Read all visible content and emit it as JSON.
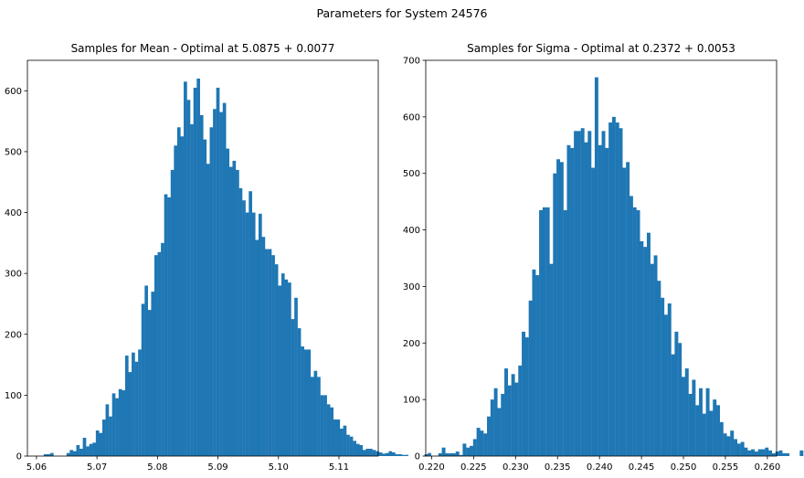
{
  "figure": {
    "suptitle": "Parameters for System 24576"
  },
  "colors": {
    "bar": "#1f77b4",
    "axis": "#000000",
    "background": "#ffffff"
  },
  "chart_data": [
    {
      "type": "bar",
      "title": "Samples for Mean - Optimal at 5.0875 + 0.0077",
      "xlabel": "",
      "ylabel": "",
      "xlim": [
        5.0585,
        5.1165
      ],
      "ylim": [
        0,
        650
      ],
      "xticks": [
        5.06,
        5.07,
        5.08,
        5.09,
        5.1,
        5.11
      ],
      "xtick_labels": [
        "5.06",
        "5.07",
        "5.08",
        "5.09",
        "5.10",
        "5.11"
      ],
      "yticks": [
        0,
        100,
        200,
        300,
        400,
        500,
        600
      ],
      "ytick_labels": [
        "0",
        "100",
        "200",
        "300",
        "400",
        "500",
        "600"
      ],
      "bin_start": 5.0612,
      "bin_width": 0.000538,
      "values": [
        3,
        3,
        5,
        0,
        0,
        0,
        0,
        5,
        10,
        8,
        18,
        12,
        30,
        16,
        20,
        22,
        42,
        38,
        60,
        85,
        65,
        103,
        95,
        110,
        108,
        165,
        138,
        170,
        155,
        175,
        250,
        280,
        240,
        270,
        330,
        335,
        350,
        430,
        425,
        470,
        510,
        540,
        525,
        615,
        585,
        545,
        605,
        620,
        560,
        520,
        480,
        540,
        570,
        605,
        565,
        580,
        505,
        475,
        485,
        470,
        440,
        420,
        400,
        435,
        400,
        355,
        398,
        360,
        340,
        340,
        330,
        315,
        280,
        300,
        290,
        285,
        225,
        260,
        210,
        180,
        175,
        175,
        130,
        140,
        130,
        100,
        100,
        85,
        80,
        60,
        60,
        45,
        50,
        35,
        32,
        25,
        20,
        18,
        10,
        12,
        12,
        10,
        8,
        6,
        4,
        5,
        8,
        6,
        3,
        3,
        2,
        2,
        0,
        0,
        0,
        0,
        0,
        3,
        5
      ],
      "grid": false,
      "legend": "none"
    },
    {
      "type": "bar",
      "title": "Samples for Sigma - Optimal at 0.2372 + 0.0053",
      "xlabel": "",
      "ylabel": "",
      "xlim": [
        0.2193,
        0.2611
      ],
      "ylim": [
        0,
        700
      ],
      "xticks": [
        0.22,
        0.225,
        0.23,
        0.235,
        0.24,
        0.245,
        0.25,
        0.255,
        0.26
      ],
      "xtick_labels": [
        "0.220",
        "0.225",
        "0.230",
        "0.235",
        "0.240",
        "0.245",
        "0.250",
        "0.255",
        "0.260"
      ],
      "yticks": [
        0,
        100,
        200,
        300,
        400,
        500,
        600,
        700
      ],
      "ytick_labels": [
        "0",
        "100",
        "200",
        "300",
        "400",
        "500",
        "600",
        "700"
      ],
      "bin_start": 0.2208,
      "bin_width": 0.000414,
      "values": [
        5,
        15,
        5,
        5,
        5,
        8,
        2,
        22,
        15,
        18,
        30,
        50,
        45,
        40,
        70,
        100,
        120,
        85,
        110,
        155,
        125,
        145,
        130,
        160,
        220,
        210,
        275,
        330,
        320,
        435,
        440,
        440,
        340,
        500,
        525,
        520,
        435,
        550,
        545,
        575,
        575,
        580,
        555,
        575,
        510,
        670,
        550,
        575,
        545,
        590,
        600,
        590,
        580,
        510,
        520,
        460,
        440,
        435,
        380,
        370,
        395,
        340,
        355,
        310,
        280,
        250,
        270,
        180,
        220,
        200,
        140,
        155,
        110,
        135,
        90,
        120,
        75,
        120,
        80,
        100,
        90,
        60,
        40,
        35,
        45,
        30,
        22,
        25,
        15,
        10,
        12,
        8,
        12,
        12,
        15,
        10,
        5,
        8,
        10,
        5,
        5,
        0,
        0,
        0,
        10,
        0,
        0,
        0,
        5,
        10
      ],
      "grid": false,
      "legend": "none"
    }
  ]
}
